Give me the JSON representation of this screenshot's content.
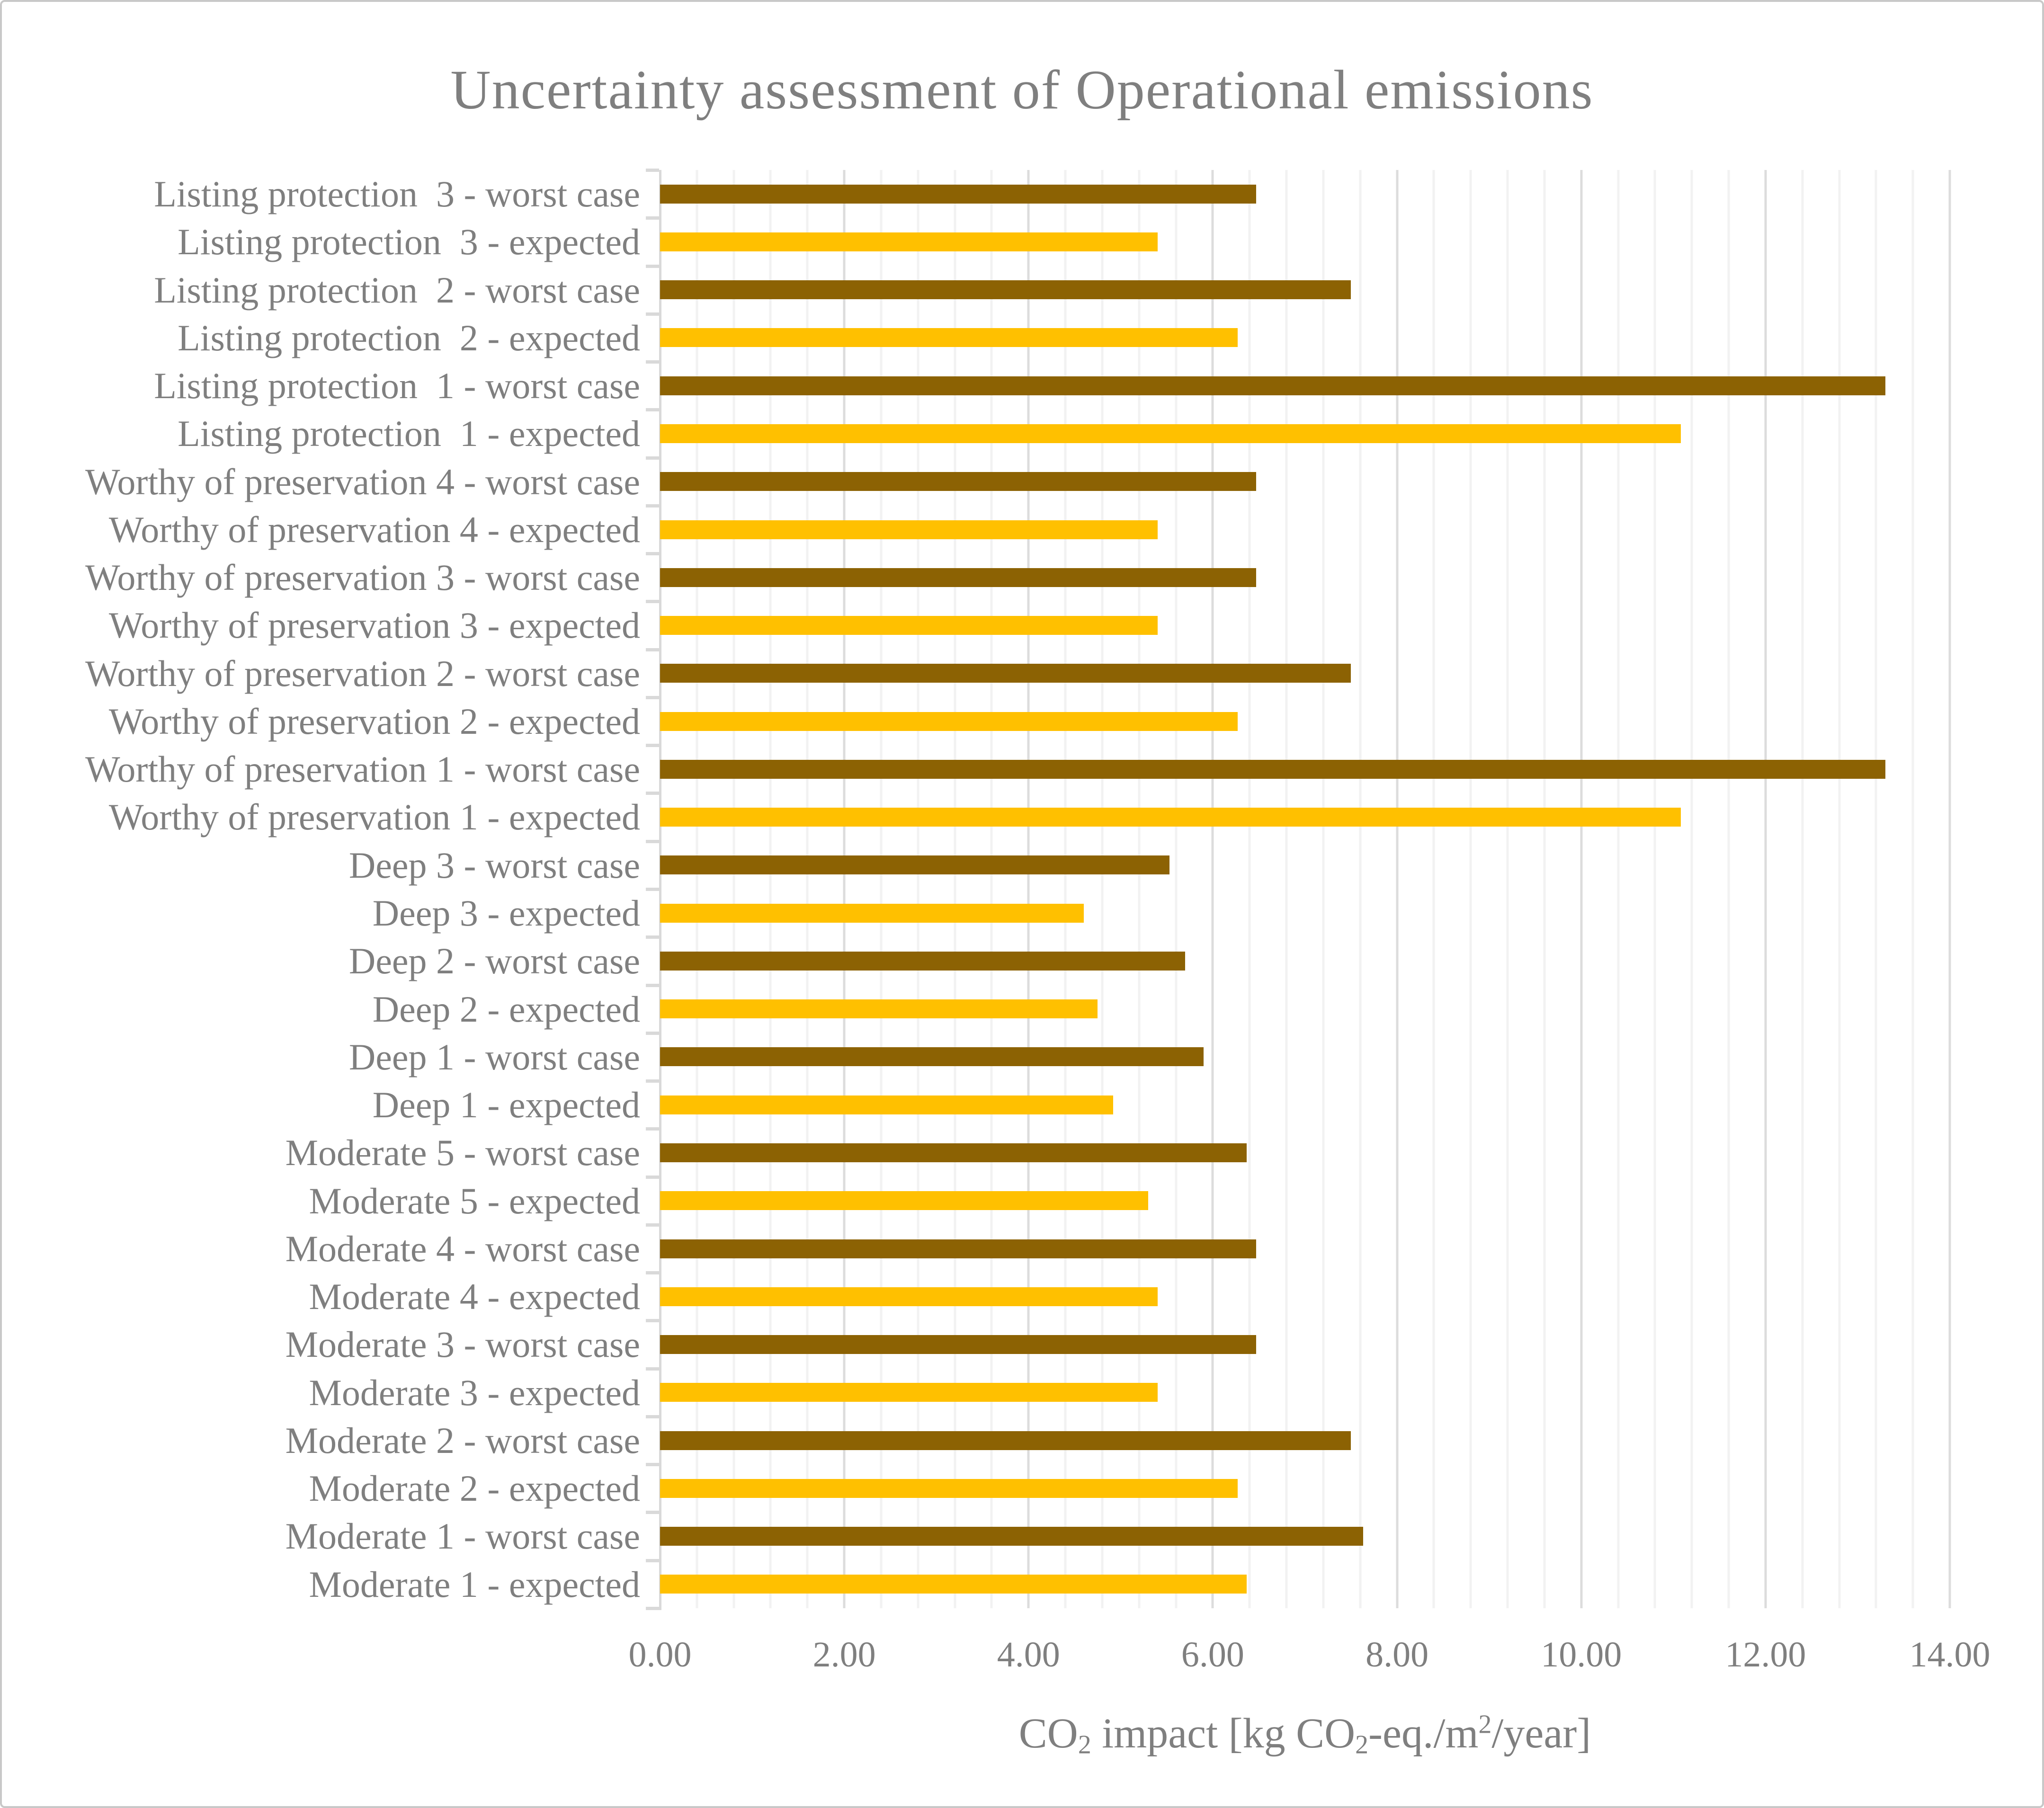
{
  "page": {
    "background": "#FFFFFF",
    "border_color": "#C8C8C8"
  },
  "chart_data": {
    "type": "bar",
    "orientation": "horizontal",
    "title": "Uncertainty assessment of Operational emissions",
    "title_color": "#7F7F7F",
    "text_color": "#7F7F7F",
    "xlabel_plain": "CO2 impact [kg CO2-eq./m2/year]",
    "xlabel_segments": [
      {
        "text": "CO",
        "style": "normal"
      },
      {
        "text": "2",
        "style": "sub"
      },
      {
        "text": " impact [kg CO",
        "style": "normal"
      },
      {
        "text": "2",
        "style": "sub"
      },
      {
        "text": "-eq./m",
        "style": "normal"
      },
      {
        "text": "2",
        "style": "sup"
      },
      {
        "text": "/year]",
        "style": "normal"
      }
    ],
    "xlim": [
      0,
      14
    ],
    "x_major_unit": 2,
    "x_minor_unit": 0.4,
    "xtick_values": [
      0,
      2,
      4,
      6,
      8,
      10,
      12,
      14
    ],
    "xtick_labels": [
      "0.00",
      "2.00",
      "4.00",
      "6.00",
      "8.00",
      "10.00",
      "12.00",
      "14.00"
    ],
    "grid": {
      "minor_color": "#F2F2F2",
      "major_color": "#DCDCDC",
      "axis_color": "#D9D9D9",
      "grid_on": true,
      "legend": "none"
    },
    "series_styles": {
      "worst": {
        "name": "worst case",
        "color": "#8C6203"
      },
      "expected": {
        "name": "expected",
        "color": "#FFC000"
      }
    },
    "rows": [
      {
        "label": "Listing protection  3 - worst case",
        "value": 6.47,
        "series": "worst"
      },
      {
        "label": "Listing protection  3 - expected",
        "value": 5.4,
        "series": "expected"
      },
      {
        "label": "Listing protection  2 - worst case",
        "value": 7.5,
        "series": "worst"
      },
      {
        "label": "Listing protection  2 - expected",
        "value": 6.27,
        "series": "expected"
      },
      {
        "label": "Listing protection  1 - worst case",
        "value": 13.3,
        "series": "worst"
      },
      {
        "label": "Listing protection  1 - expected",
        "value": 11.08,
        "series": "expected"
      },
      {
        "label": "Worthy of preservation 4 - worst case",
        "value": 6.47,
        "series": "worst"
      },
      {
        "label": "Worthy of preservation 4 - expected",
        "value": 5.4,
        "series": "expected"
      },
      {
        "label": "Worthy of preservation 3 - worst case",
        "value": 6.47,
        "series": "worst"
      },
      {
        "label": "Worthy of preservation 3 - expected",
        "value": 5.4,
        "series": "expected"
      },
      {
        "label": "Worthy of preservation 2 - worst case",
        "value": 7.5,
        "series": "worst"
      },
      {
        "label": "Worthy of preservation 2 - expected",
        "value": 6.27,
        "series": "expected"
      },
      {
        "label": "Worthy of preservation 1 - worst case",
        "value": 13.3,
        "series": "worst"
      },
      {
        "label": "Worthy of preservation 1 - expected",
        "value": 11.08,
        "series": "expected"
      },
      {
        "label": "Deep 3 - worst case",
        "value": 5.53,
        "series": "worst"
      },
      {
        "label": "Deep 3 - expected",
        "value": 4.6,
        "series": "expected"
      },
      {
        "label": "Deep 2 - worst case",
        "value": 5.7,
        "series": "worst"
      },
      {
        "label": "Deep 2 - expected",
        "value": 4.75,
        "series": "expected"
      },
      {
        "label": "Deep 1 - worst case",
        "value": 5.9,
        "series": "worst"
      },
      {
        "label": "Deep 1 - expected",
        "value": 4.92,
        "series": "expected"
      },
      {
        "label": "Moderate 5 - worst case",
        "value": 6.37,
        "series": "worst"
      },
      {
        "label": "Moderate 5 - expected",
        "value": 5.3,
        "series": "expected"
      },
      {
        "label": "Moderate 4 - worst case",
        "value": 6.47,
        "series": "worst"
      },
      {
        "label": "Moderate 4 - expected",
        "value": 5.4,
        "series": "expected"
      },
      {
        "label": "Moderate 3 - worst case",
        "value": 6.47,
        "series": "worst"
      },
      {
        "label": "Moderate 3 - expected",
        "value": 5.4,
        "series": "expected"
      },
      {
        "label": "Moderate 2 - worst case",
        "value": 7.5,
        "series": "worst"
      },
      {
        "label": "Moderate 2 - expected",
        "value": 6.27,
        "series": "expected"
      },
      {
        "label": "Moderate 1 - worst case",
        "value": 7.63,
        "series": "worst"
      },
      {
        "label": "Moderate 1 - expected",
        "value": 6.37,
        "series": "expected"
      }
    ]
  }
}
